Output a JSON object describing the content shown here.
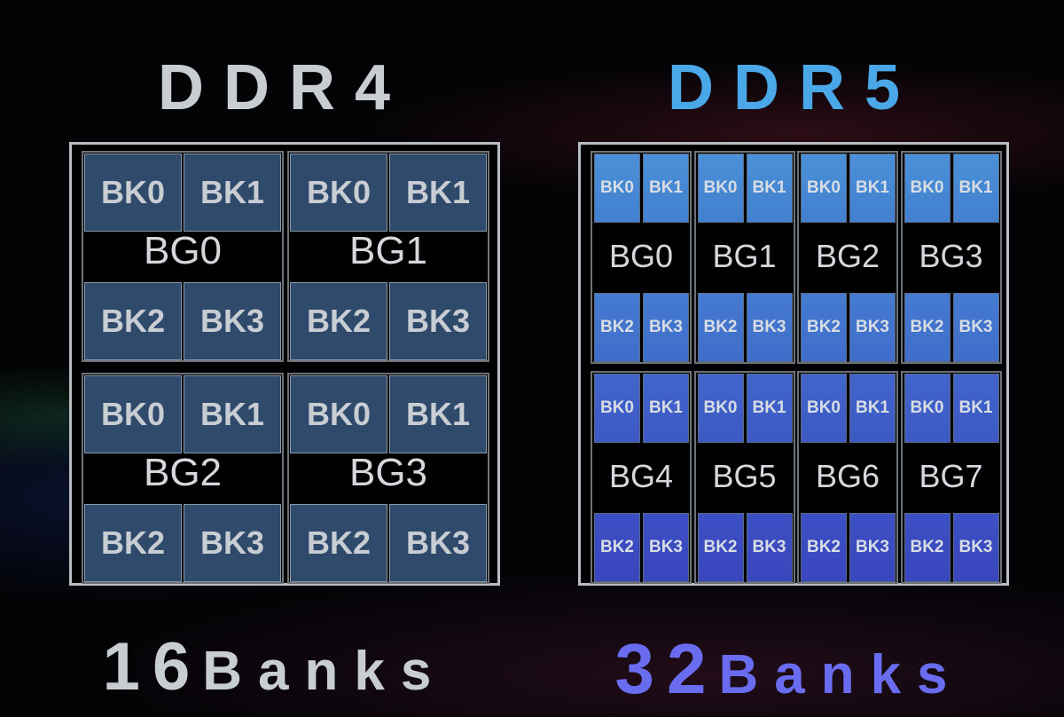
{
  "ddr4": {
    "title": "DDR4",
    "footer_num": "16",
    "footer_word": "Banks",
    "title_color": "#c8cdd2",
    "groups": [
      {
        "label": "BG0",
        "banks": [
          "BK0",
          "BK1",
          "BK2",
          "BK3"
        ]
      },
      {
        "label": "BG1",
        "banks": [
          "BK0",
          "BK1",
          "BK2",
          "BK3"
        ]
      },
      {
        "label": "BG2",
        "banks": [
          "BK0",
          "BK1",
          "BK2",
          "BK3"
        ]
      },
      {
        "label": "BG3",
        "banks": [
          "BK0",
          "BK1",
          "BK2",
          "BK3"
        ]
      }
    ]
  },
  "ddr5": {
    "title": "DDR5",
    "footer_num": "32",
    "footer_word": "Banks",
    "title_color": "#4aa8e8",
    "footer_color": "#6a6cf0",
    "groups": [
      {
        "label": "BG0",
        "banks": [
          "BK0",
          "BK1",
          "BK2",
          "BK3"
        ]
      },
      {
        "label": "BG1",
        "banks": [
          "BK0",
          "BK1",
          "BK2",
          "BK3"
        ]
      },
      {
        "label": "BG2",
        "banks": [
          "BK0",
          "BK1",
          "BK2",
          "BK3"
        ]
      },
      {
        "label": "BG3",
        "banks": [
          "BK0",
          "BK1",
          "BK2",
          "BK3"
        ]
      },
      {
        "label": "BG4",
        "banks": [
          "BK0",
          "BK1",
          "BK2",
          "BK3"
        ]
      },
      {
        "label": "BG5",
        "banks": [
          "BK0",
          "BK1",
          "BK2",
          "BK3"
        ]
      },
      {
        "label": "BG6",
        "banks": [
          "BK0",
          "BK1",
          "BK2",
          "BK3"
        ]
      },
      {
        "label": "BG7",
        "banks": [
          "BK0",
          "BK1",
          "BK2",
          "BK3"
        ]
      }
    ]
  }
}
